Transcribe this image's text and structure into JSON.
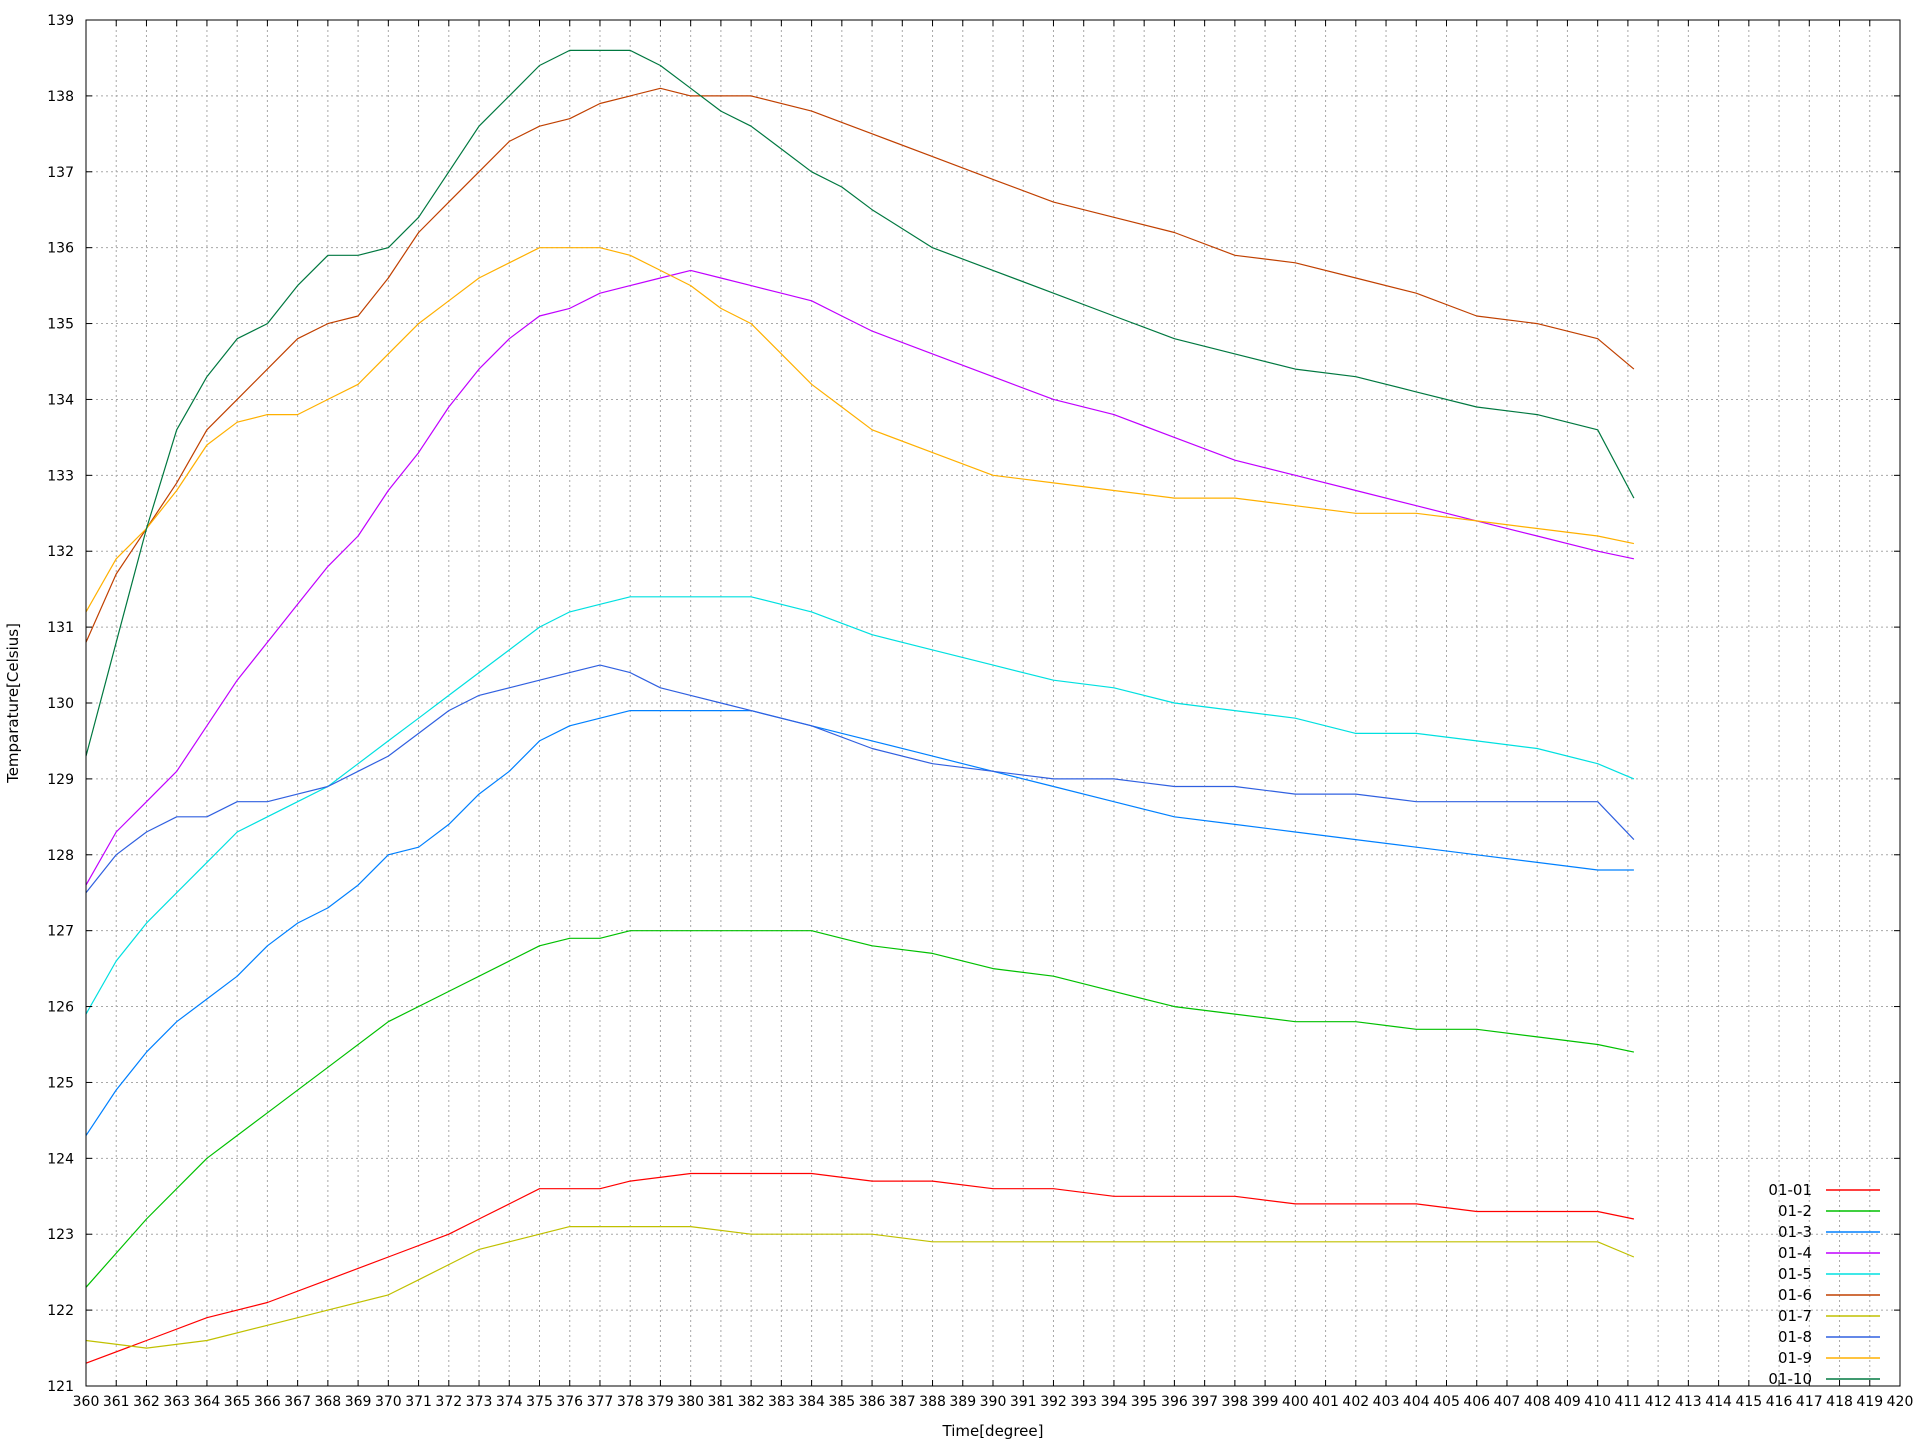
{
  "chart_data": {
    "type": "line",
    "xlabel": "Time[degree]",
    "ylabel": "Temparature[Celsius]",
    "xlim": [
      360,
      420
    ],
    "ylim": [
      121,
      139
    ],
    "x_ticks": [
      360,
      361,
      362,
      363,
      364,
      365,
      366,
      367,
      368,
      369,
      370,
      371,
      372,
      373,
      374,
      375,
      376,
      377,
      378,
      379,
      380,
      381,
      382,
      383,
      384,
      385,
      386,
      387,
      388,
      389,
      390,
      391,
      392,
      393,
      394,
      395,
      396,
      397,
      398,
      399,
      400,
      401,
      402,
      403,
      404,
      405,
      406,
      407,
      408,
      409,
      410,
      411,
      412,
      413,
      414,
      415,
      416,
      417,
      418,
      419,
      420
    ],
    "y_ticks": [
      121,
      122,
      123,
      124,
      125,
      126,
      127,
      128,
      129,
      130,
      131,
      132,
      133,
      134,
      135,
      136,
      137,
      138,
      139
    ],
    "grid": true,
    "legend_position": "bottom-right",
    "series": [
      {
        "name": "01-01",
        "color": "#ff0000",
        "x": [
          360,
          362,
          364,
          366,
          368,
          370,
          372,
          373,
          374,
          375,
          376,
          377,
          378,
          380,
          382,
          384,
          386,
          388,
          390,
          392,
          394,
          396,
          398,
          400,
          402,
          404,
          406,
          408,
          410,
          411.2
        ],
        "y": [
          121.3,
          121.6,
          121.9,
          122.1,
          122.4,
          122.7,
          123.0,
          123.2,
          123.4,
          123.6,
          123.6,
          123.6,
          123.7,
          123.8,
          123.8,
          123.8,
          123.7,
          123.7,
          123.6,
          123.6,
          123.5,
          123.5,
          123.5,
          123.4,
          123.4,
          123.4,
          123.3,
          123.3,
          123.3,
          123.2
        ]
      },
      {
        "name": "01-2",
        "color": "#00c000",
        "x": [
          360,
          362,
          364,
          366,
          368,
          370,
          372,
          374,
          375,
          376,
          377,
          378,
          380,
          382,
          384,
          385,
          386,
          388,
          390,
          392,
          394,
          396,
          398,
          400,
          402,
          404,
          406,
          408,
          410,
          411.2
        ],
        "y": [
          122.3,
          123.2,
          124.0,
          124.6,
          125.2,
          125.8,
          126.2,
          126.6,
          126.8,
          126.9,
          126.9,
          127.0,
          127.0,
          127.0,
          127.0,
          126.9,
          126.8,
          126.7,
          126.5,
          126.4,
          126.2,
          126.0,
          125.9,
          125.8,
          125.8,
          125.7,
          125.7,
          125.6,
          125.5,
          125.4
        ]
      },
      {
        "name": "01-3",
        "color": "#0080ff",
        "x": [
          360,
          361,
          362,
          363,
          364,
          365,
          366,
          367,
          368,
          369,
          370,
          371,
          372,
          373,
          374,
          375,
          376,
          377,
          378,
          380,
          382,
          384,
          386,
          388,
          390,
          392,
          394,
          396,
          398,
          400,
          402,
          404,
          406,
          408,
          410,
          411.2
        ],
        "y": [
          124.3,
          124.9,
          125.4,
          125.8,
          126.1,
          126.4,
          126.8,
          127.1,
          127.3,
          127.6,
          128.0,
          128.1,
          128.4,
          128.8,
          129.1,
          129.5,
          129.7,
          129.8,
          129.9,
          129.9,
          129.9,
          129.7,
          129.5,
          129.3,
          129.1,
          128.9,
          128.7,
          128.5,
          128.4,
          128.3,
          128.2,
          128.1,
          128.0,
          127.9,
          127.8,
          127.8
        ]
      },
      {
        "name": "01-4",
        "color": "#c000ff",
        "x": [
          360,
          361,
          362,
          363,
          364,
          365,
          366,
          367,
          368,
          369,
          370,
          371,
          372,
          373,
          374,
          375,
          376,
          377,
          378,
          379,
          380,
          381,
          382,
          383,
          384,
          385,
          386,
          388,
          390,
          392,
          394,
          396,
          398,
          400,
          402,
          404,
          406,
          408,
          410,
          411.2
        ],
        "y": [
          127.6,
          128.3,
          128.7,
          129.1,
          129.7,
          130.3,
          130.8,
          131.3,
          131.8,
          132.2,
          132.8,
          133.3,
          133.9,
          134.4,
          134.8,
          135.1,
          135.2,
          135.4,
          135.5,
          135.6,
          135.7,
          135.6,
          135.5,
          135.4,
          135.3,
          135.1,
          134.9,
          134.6,
          134.3,
          134.0,
          133.8,
          133.5,
          133.2,
          133.0,
          132.8,
          132.6,
          132.4,
          132.2,
          132.0,
          131.9
        ]
      },
      {
        "name": "01-5",
        "color": "#00e0e0",
        "x": [
          360,
          361,
          362,
          363,
          364,
          365,
          366,
          367,
          368,
          369,
          370,
          371,
          372,
          373,
          374,
          375,
          376,
          377,
          378,
          380,
          382,
          384,
          386,
          388,
          390,
          392,
          394,
          396,
          398,
          400,
          402,
          404,
          406,
          408,
          410,
          411.2
        ],
        "y": [
          125.9,
          126.6,
          127.1,
          127.5,
          127.9,
          128.3,
          128.5,
          128.7,
          128.9,
          129.2,
          129.5,
          129.8,
          130.1,
          130.4,
          130.7,
          131.0,
          131.2,
          131.3,
          131.4,
          131.4,
          131.4,
          131.2,
          130.9,
          130.7,
          130.5,
          130.3,
          130.2,
          130.0,
          129.9,
          129.8,
          129.6,
          129.6,
          129.5,
          129.4,
          129.2,
          129.0
        ]
      },
      {
        "name": "01-6",
        "color": "#c04000",
        "x": [
          360,
          361,
          362,
          363,
          364,
          365,
          366,
          367,
          368,
          369,
          370,
          371,
          372,
          373,
          374,
          375,
          376,
          377,
          378,
          379,
          380,
          382,
          384,
          386,
          388,
          390,
          392,
          394,
          396,
          398,
          400,
          402,
          404,
          406,
          408,
          410,
          411.2
        ],
        "y": [
          130.8,
          131.7,
          132.3,
          132.9,
          133.6,
          134.0,
          134.4,
          134.8,
          135.0,
          135.1,
          135.6,
          136.2,
          136.6,
          137.0,
          137.4,
          137.6,
          137.7,
          137.9,
          138.0,
          138.1,
          138.0,
          138.0,
          137.8,
          137.5,
          137.2,
          136.9,
          136.6,
          136.4,
          136.2,
          135.9,
          135.8,
          135.6,
          135.4,
          135.1,
          135.0,
          134.8,
          134.4
        ]
      },
      {
        "name": "01-7",
        "color": "#c0c000",
        "x": [
          360,
          362,
          364,
          366,
          368,
          370,
          371,
          372,
          373,
          374,
          375,
          376,
          377,
          378,
          380,
          382,
          384,
          386,
          388,
          390,
          392,
          394,
          396,
          398,
          400,
          402,
          404,
          406,
          408,
          410,
          411.2
        ],
        "y": [
          121.6,
          121.5,
          121.6,
          121.8,
          122.0,
          122.2,
          122.4,
          122.6,
          122.8,
          122.9,
          123.0,
          123.1,
          123.1,
          123.1,
          123.1,
          123.0,
          123.0,
          123.0,
          122.9,
          122.9,
          122.9,
          122.9,
          122.9,
          122.9,
          122.9,
          122.9,
          122.9,
          122.9,
          122.9,
          122.9,
          122.7
        ]
      },
      {
        "name": "01-8",
        "color": "#3060e0",
        "x": [
          360,
          361,
          362,
          363,
          364,
          365,
          366,
          367,
          368,
          369,
          370,
          371,
          372,
          373,
          374,
          375,
          376,
          377,
          378,
          379,
          380,
          381,
          382,
          384,
          386,
          388,
          390,
          392,
          394,
          396,
          398,
          400,
          402,
          404,
          406,
          408,
          410,
          411.2
        ],
        "y": [
          127.5,
          128.0,
          128.3,
          128.5,
          128.5,
          128.7,
          128.7,
          128.8,
          128.9,
          129.1,
          129.3,
          129.6,
          129.9,
          130.1,
          130.2,
          130.3,
          130.4,
          130.5,
          130.4,
          130.2,
          130.1,
          130.0,
          129.9,
          129.7,
          129.4,
          129.2,
          129.1,
          129.0,
          129.0,
          128.9,
          128.9,
          128.8,
          128.8,
          128.7,
          128.7,
          128.7,
          128.7,
          128.2
        ]
      },
      {
        "name": "01-9",
        "color": "#ffb000",
        "x": [
          360,
          361,
          362,
          363,
          364,
          365,
          366,
          367,
          368,
          369,
          370,
          371,
          372,
          373,
          374,
          375,
          376,
          377,
          378,
          379,
          380,
          381,
          382,
          383,
          384,
          385,
          386,
          388,
          390,
          392,
          394,
          396,
          398,
          400,
          402,
          404,
          406,
          408,
          410,
          411.2
        ],
        "y": [
          131.2,
          131.9,
          132.3,
          132.8,
          133.4,
          133.7,
          133.8,
          133.8,
          134.0,
          134.2,
          134.6,
          135.0,
          135.3,
          135.6,
          135.8,
          136.0,
          136.0,
          136.0,
          135.9,
          135.7,
          135.5,
          135.2,
          135.0,
          134.6,
          134.2,
          133.9,
          133.6,
          133.3,
          133.0,
          132.9,
          132.8,
          132.7,
          132.7,
          132.6,
          132.5,
          132.5,
          132.4,
          132.3,
          132.2,
          132.1
        ]
      },
      {
        "name": "01-10",
        "color": "#007840",
        "x": [
          360,
          361,
          362,
          363,
          364,
          365,
          366,
          367,
          368,
          369,
          370,
          371,
          372,
          373,
          374,
          375,
          376,
          377,
          378,
          379,
          380,
          381,
          382,
          383,
          384,
          385,
          386,
          388,
          390,
          392,
          394,
          396,
          398,
          400,
          402,
          404,
          406,
          408,
          410,
          411.2
        ],
        "y": [
          129.3,
          130.8,
          132.3,
          133.6,
          134.3,
          134.8,
          135.0,
          135.5,
          135.9,
          135.9,
          136.0,
          136.4,
          137.0,
          137.6,
          138.0,
          138.4,
          138.6,
          138.6,
          138.6,
          138.4,
          138.1,
          137.8,
          137.6,
          137.3,
          137.0,
          136.8,
          136.5,
          136.0,
          135.7,
          135.4,
          135.1,
          134.8,
          134.6,
          134.4,
          134.3,
          134.1,
          133.9,
          133.8,
          133.6,
          132.7
        ]
      }
    ]
  }
}
